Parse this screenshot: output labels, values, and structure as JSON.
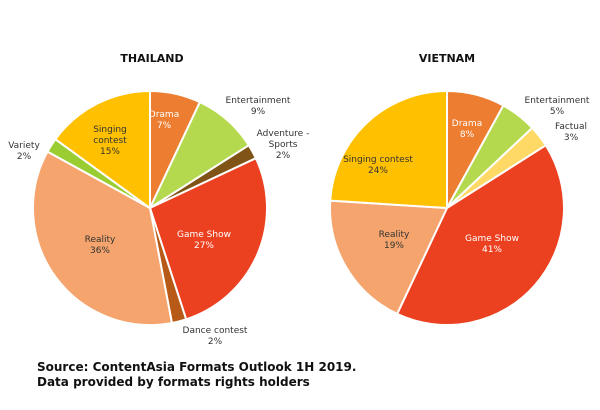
{
  "chart_data": [
    {
      "type": "pie",
      "title": "THAILAND",
      "slices": [
        {
          "label": "Drama",
          "value": 7,
          "pct_label": "7%",
          "color": "#ED7D31"
        },
        {
          "label": "Entertainment",
          "value": 9,
          "pct_label": "9%",
          "color": "#B5D94E"
        },
        {
          "label": "Adventure - Sports",
          "value": 2,
          "pct_label": "2%",
          "color": "#7F5416"
        },
        {
          "label": "Game Show",
          "value": 27,
          "pct_label": "27%",
          "color": "#EB4121"
        },
        {
          "label": "Dance contest",
          "value": 2,
          "pct_label": "2%",
          "color": "#B85A17"
        },
        {
          "label": "Reality",
          "value": 36,
          "pct_label": "36%",
          "color": "#F4A46C"
        },
        {
          "label": "Variety",
          "value": 2,
          "pct_label": "2%",
          "color": "#9ACD32"
        },
        {
          "label": "Singing contest",
          "value": 15,
          "pct_label": "15%",
          "color": "#FFC000"
        }
      ]
    },
    {
      "type": "pie",
      "title": "VIETNAM",
      "slices": [
        {
          "label": "Drama",
          "value": 8,
          "pct_label": "8%",
          "color": "#ED7D31"
        },
        {
          "label": "Entertainment",
          "value": 5,
          "pct_label": "5%",
          "color": "#B5D94E"
        },
        {
          "label": "Factual",
          "value": 3,
          "pct_label": "3%",
          "color": "#FFD966"
        },
        {
          "label": "Game Show",
          "value": 41,
          "pct_label": "41%",
          "color": "#EB4121"
        },
        {
          "label": "Reality",
          "value": 19,
          "pct_label": "19%",
          "color": "#F4A46C"
        },
        {
          "label": "Singing contest",
          "value": 24,
          "pct_label": "24%",
          "color": "#FFC000"
        }
      ]
    }
  ],
  "footnote": {
    "line1": "Source: ContentAsia Formats Outlook 1H 2019.",
    "line2": "Data provided by formats rights holders"
  }
}
